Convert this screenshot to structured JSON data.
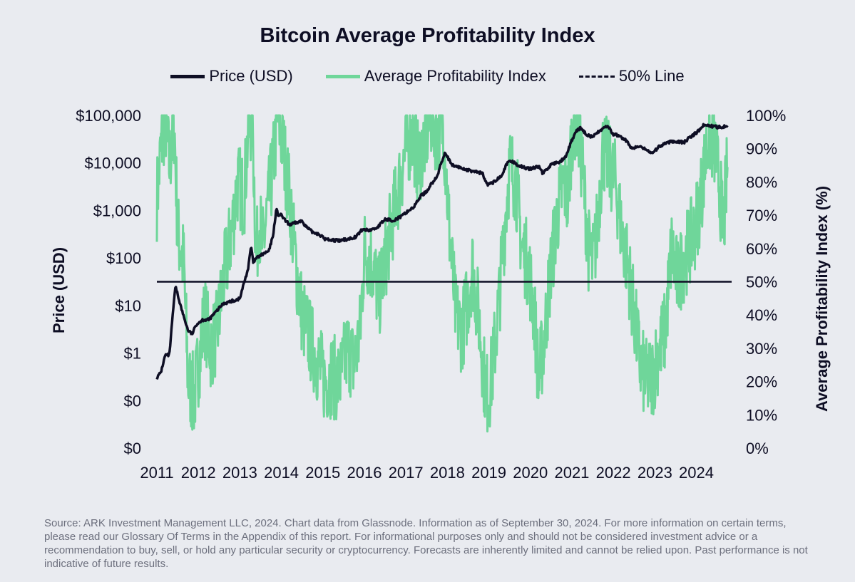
{
  "chart_data": {
    "type": "line",
    "title": "Bitcoin Average Profitability Index",
    "legend": [
      {
        "name": "Price (USD)",
        "color": "#0e0e24",
        "style": "solid"
      },
      {
        "name": "Average Profitability Index",
        "color": "#6fd69a",
        "style": "solid"
      },
      {
        "name": "50% Line",
        "color": "#0e0e24",
        "style": "dashed"
      }
    ],
    "legend_position": "top-center",
    "ylabel_left": "Price (USD)",
    "ylabel_right": "Average Profitability Index (%)",
    "left_ticks": [
      "$100,000",
      "$10,000",
      "$1,000",
      "$100",
      "$10",
      "$1",
      "$0",
      "$0"
    ],
    "right_ticks": [
      "100%",
      "90%",
      "80%",
      "70%",
      "60%",
      "50%",
      "40%",
      "30%",
      "20%",
      "10%",
      "0%"
    ],
    "x_ticks": [
      "2011",
      "2012",
      "2013",
      "2014",
      "2015",
      "2016",
      "2017",
      "2018",
      "2019",
      "2020",
      "2021",
      "2022",
      "2023",
      "2024"
    ],
    "left_ylim_log10": [
      -2,
      5
    ],
    "right_ylim": [
      0,
      100
    ],
    "xlim": [
      2011.0,
      2024.85
    ],
    "reference_line": {
      "name": "50% Line",
      "value": 50
    },
    "series": [
      {
        "name": "Price (USD)",
        "axis": "left",
        "scale": "log",
        "x": [
          2011.0,
          2011.1,
          2011.2,
          2011.3,
          2011.42,
          2011.45,
          2011.6,
          2011.75,
          2011.85,
          2011.95,
          2012.1,
          2012.25,
          2012.4,
          2012.6,
          2012.75,
          2012.9,
          2013.0,
          2013.1,
          2013.2,
          2013.27,
          2013.32,
          2013.4,
          2013.55,
          2013.7,
          2013.8,
          2013.88,
          2013.92,
          2014.0,
          2014.1,
          2014.2,
          2014.35,
          2014.5,
          2014.6,
          2014.75,
          2014.9,
          2015.05,
          2015.2,
          2015.4,
          2015.6,
          2015.8,
          2015.95,
          2016.1,
          2016.3,
          2016.5,
          2016.7,
          2016.9,
          2017.0,
          2017.2,
          2017.35,
          2017.5,
          2017.6,
          2017.75,
          2017.85,
          2017.95,
          2018.05,
          2018.1,
          2018.2,
          2018.3,
          2018.5,
          2018.7,
          2018.85,
          2018.95,
          2019.1,
          2019.3,
          2019.45,
          2019.55,
          2019.7,
          2019.85,
          2020.0,
          2020.2,
          2020.3,
          2020.5,
          2020.7,
          2020.85,
          2021.0,
          2021.1,
          2021.2,
          2021.35,
          2021.5,
          2021.7,
          2021.85,
          2022.0,
          2022.1,
          2022.3,
          2022.45,
          2022.6,
          2022.8,
          2022.95,
          2023.1,
          2023.3,
          2023.5,
          2023.7,
          2023.85,
          2024.0,
          2024.2,
          2024.35,
          2024.5,
          2024.65,
          2024.75
        ],
        "values": [
          0.3,
          0.4,
          0.9,
          0.9,
          15,
          25,
          8,
          3,
          2.5,
          4,
          5,
          5,
          7,
          11,
          12,
          13,
          14,
          30,
          60,
          180,
          80,
          100,
          120,
          140,
          300,
          1100,
          800,
          800,
          600,
          500,
          550,
          600,
          450,
          350,
          320,
          250,
          240,
          230,
          250,
          280,
          400,
          380,
          430,
          650,
          620,
          750,
          900,
          1200,
          2000,
          2500,
          3500,
          5000,
          10000,
          17000,
          11000,
          9000,
          8500,
          8000,
          7000,
          6500,
          6000,
          3500,
          3800,
          5500,
          10000,
          11000,
          9000,
          8000,
          7500,
          8500,
          6000,
          9200,
          10500,
          13000,
          30000,
          45000,
          55000,
          40000,
          35000,
          50000,
          60000,
          40000,
          38000,
          30000,
          20000,
          22000,
          19000,
          16000,
          22000,
          27000,
          29000,
          27000,
          35000,
          43000,
          65000,
          60000,
          57000,
          58000,
          63000
        ]
      },
      {
        "name": "Average Profitability Index",
        "axis": "right",
        "x": [
          2011.0,
          2011.1,
          2011.2,
          2011.3,
          2011.42,
          2011.5,
          2011.65,
          2011.75,
          2011.9,
          2012.0,
          2012.15,
          2012.3,
          2012.45,
          2012.6,
          2012.8,
          2012.95,
          2013.1,
          2013.2,
          2013.3,
          2013.4,
          2013.45,
          2013.55,
          2013.7,
          2013.8,
          2013.92,
          2014.05,
          2014.2,
          2014.35,
          2014.5,
          2014.7,
          2014.9,
          2015.05,
          2015.2,
          2015.4,
          2015.6,
          2015.75,
          2015.9,
          2016.0,
          2016.2,
          2016.35,
          2016.55,
          2016.7,
          2016.85,
          2017.0,
          2017.15,
          2017.3,
          2017.45,
          2017.6,
          2017.75,
          2017.9,
          2018.05,
          2018.2,
          2018.35,
          2018.5,
          2018.6,
          2018.75,
          2018.9,
          2018.98,
          2019.1,
          2019.25,
          2019.4,
          2019.5,
          2019.65,
          2019.8,
          2019.95,
          2020.1,
          2020.2,
          2020.35,
          2020.5,
          2020.65,
          2020.8,
          2020.9,
          2021.0,
          2021.1,
          2021.25,
          2021.4,
          2021.5,
          2021.6,
          2021.75,
          2021.9,
          2022.05,
          2022.2,
          2022.35,
          2022.5,
          2022.65,
          2022.8,
          2022.95,
          2023.1,
          2023.25,
          2023.4,
          2023.55,
          2023.65,
          2023.8,
          2023.95,
          2024.1,
          2024.2,
          2024.3,
          2024.45,
          2024.55,
          2024.65,
          2024.75
        ],
        "values": [
          75,
          90,
          100,
          85,
          98,
          65,
          55,
          20,
          15,
          25,
          40,
          30,
          35,
          50,
          65,
          80,
          75,
          95,
          100,
          55,
          70,
          60,
          75,
          85,
          100,
          90,
          75,
          55,
          40,
          32,
          25,
          20,
          22,
          20,
          30,
          25,
          35,
          60,
          55,
          45,
          60,
          70,
          80,
          90,
          95,
          85,
          92,
          100,
          95,
          98,
          65,
          40,
          35,
          45,
          55,
          40,
          20,
          15,
          25,
          45,
          70,
          85,
          80,
          60,
          55,
          40,
          20,
          35,
          55,
          70,
          80,
          75,
          95,
          100,
          85,
          60,
          55,
          65,
          90,
          85,
          80,
          65,
          55,
          40,
          25,
          20,
          22,
          30,
          35,
          60,
          50,
          55,
          60,
          65,
          75,
          85,
          95,
          90,
          80,
          65,
          85
        ]
      }
    ]
  },
  "footnote": "Source: ARK Investment Management LLC, 2024. Chart data from Glassnode. Information as of September 30, 2024. For more information on certain terms, please read our Glossary Of Terms in the Appendix of this report. For informational purposes only and should not be considered investment advice or a recommendation to buy, sell, or hold any particular security or cryptocurrency. Forecasts are inherently limited and cannot be relied upon. Past performance is not indicative of future results."
}
